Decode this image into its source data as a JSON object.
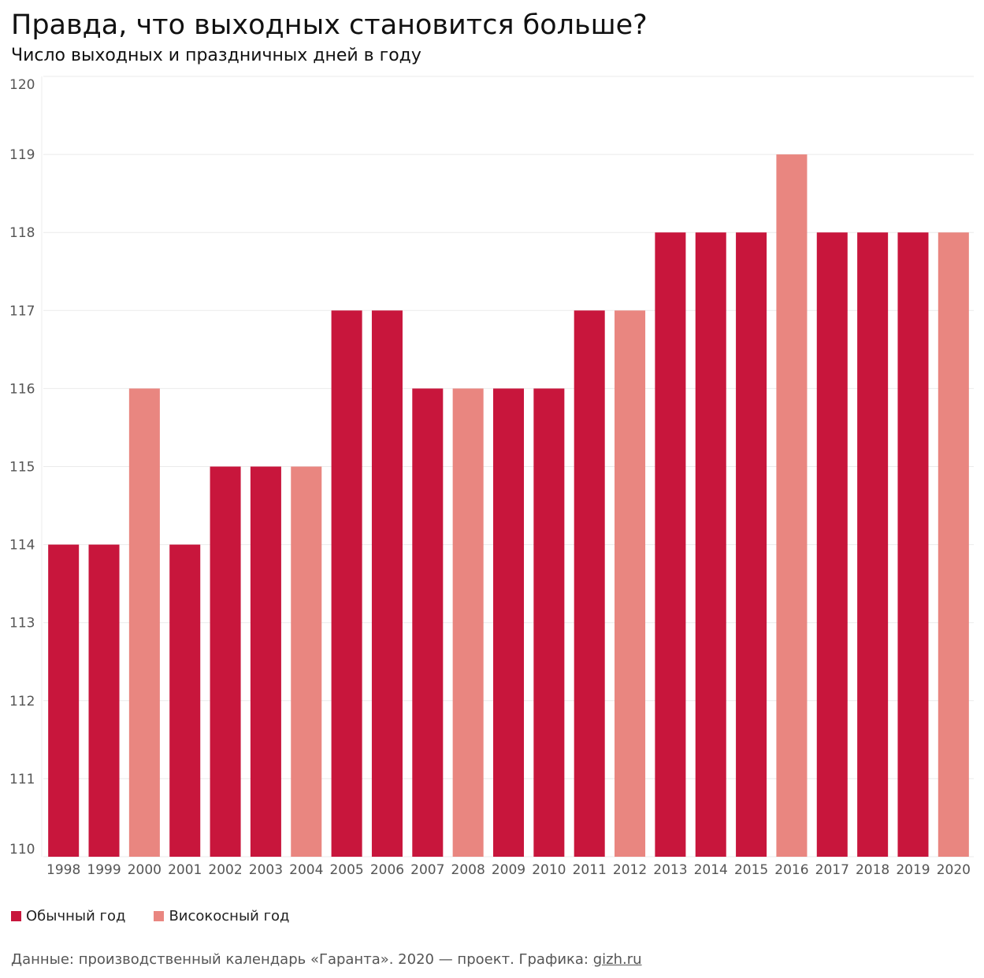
{
  "chart_data": {
    "type": "bar",
    "title": "Правда, что выходных становится больше?",
    "subtitle": "Число выходных и праздничных дней в году",
    "categories": [
      "1998",
      "1999",
      "2000",
      "2001",
      "2002",
      "2003",
      "2004",
      "2005",
      "2006",
      "2007",
      "2008",
      "2009",
      "2010",
      "2011",
      "2012",
      "2013",
      "2014",
      "2015",
      "2016",
      "2017",
      "2018",
      "2019",
      "2020"
    ],
    "values": [
      114,
      114,
      116,
      114,
      115,
      115,
      115,
      117,
      117,
      116,
      116,
      116,
      116,
      117,
      117,
      118,
      118,
      118,
      119,
      118,
      118,
      118,
      118
    ],
    "leap": [
      false,
      false,
      true,
      false,
      false,
      false,
      true,
      false,
      false,
      false,
      true,
      false,
      false,
      false,
      true,
      false,
      false,
      false,
      true,
      false,
      false,
      false,
      true
    ],
    "ylim": [
      110,
      120
    ],
    "yticks": [
      110,
      111,
      112,
      113,
      114,
      115,
      116,
      117,
      118,
      119,
      120
    ],
    "grid": true,
    "legend_position": "bottom-left",
    "legend": [
      {
        "name": "Обычный год",
        "color": "#c8163c"
      },
      {
        "name": "Високосный год",
        "color": "#e98680"
      }
    ]
  },
  "source": {
    "text": "Данные: производственный календарь «Гаранта». 2020 — проект. Графика: ",
    "link": "gizh.ru"
  }
}
